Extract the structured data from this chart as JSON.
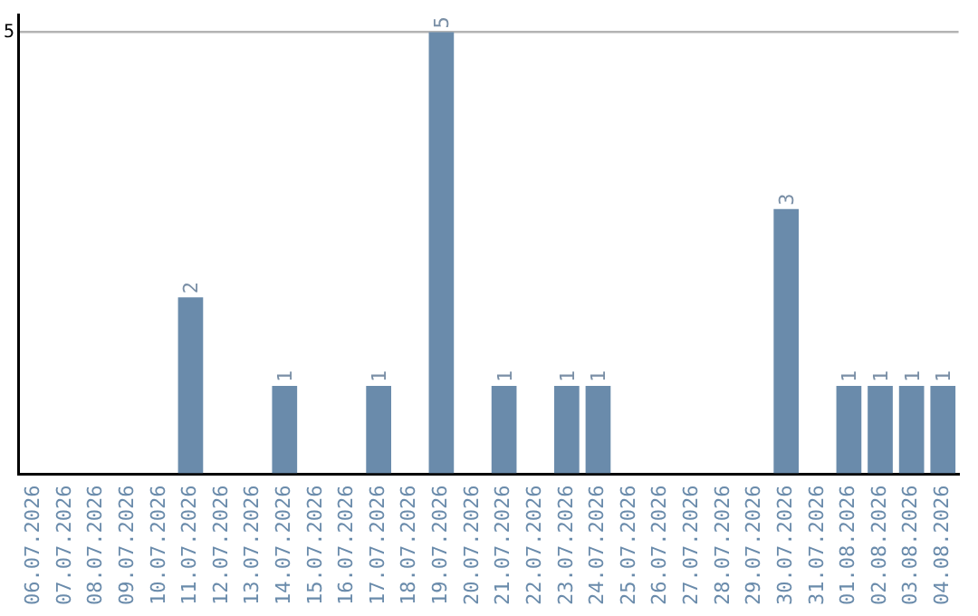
{
  "chart_data": {
    "type": "bar",
    "categories": [
      "06.07.2026",
      "07.07.2026",
      "08.07.2026",
      "09.07.2026",
      "10.07.2026",
      "11.07.2026",
      "12.07.2026",
      "13.07.2026",
      "14.07.2026",
      "15.07.2026",
      "16.07.2026",
      "17.07.2026",
      "18.07.2026",
      "19.07.2026",
      "20.07.2026",
      "21.07.2026",
      "22.07.2026",
      "23.07.2026",
      "24.07.2026",
      "25.07.2026",
      "26.07.2026",
      "27.07.2026",
      "28.07.2026",
      "29.07.2026",
      "30.07.2026",
      "31.07.2026",
      "01.08.2026",
      "02.08.2026",
      "03.08.2026",
      "04.08.2026"
    ],
    "values": [
      0,
      0,
      0,
      0,
      0,
      2,
      0,
      0,
      1,
      0,
      0,
      1,
      0,
      5,
      0,
      1,
      0,
      1,
      1,
      0,
      0,
      0,
      0,
      0,
      3,
      0,
      1,
      1,
      1,
      1
    ],
    "value_labels": [
      null,
      null,
      null,
      null,
      null,
      "2",
      null,
      null,
      "1",
      null,
      null,
      "1",
      null,
      "5",
      null,
      "1",
      null,
      "1",
      "1",
      null,
      null,
      null,
      null,
      null,
      "3",
      null,
      "1",
      "1",
      "1",
      "1"
    ],
    "color": "#6a8bab",
    "ylim": [
      0,
      5.2
    ],
    "yticks": [
      {
        "value": 0,
        "label": null
      },
      5
    ],
    "grid": "y",
    "legend": false
  }
}
